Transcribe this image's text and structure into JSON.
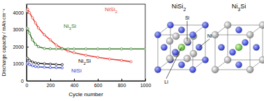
{
  "chart_data": {
    "type": "line",
    "ylabel": "Discharge capacity / mAh cm⁻³",
    "xlabel": "Cycle number",
    "x": [
      1,
      10,
      25,
      50,
      75,
      100,
      150,
      200,
      250,
      300,
      350,
      400,
      500,
      600,
      700,
      800,
      880,
      1000
    ],
    "series": [
      {
        "name": "NiSi2",
        "color": "#e8453c",
        "marker": "circle",
        "line_style": "solid",
        "values": [
          4100,
          4200,
          4000,
          3700,
          3400,
          3100,
          2700,
          2400,
          2100,
          1900,
          1750,
          1650,
          1500,
          1380,
          1280,
          1200,
          1120,
          null
        ]
      },
      {
        "name": "Ni3Si",
        "color": "#3a7d2c",
        "marker": "circle",
        "line_style": "solid",
        "values": [
          3100,
          3050,
          2800,
          2400,
          2150,
          2000,
          1900,
          1880,
          1870,
          1870,
          1870,
          1870,
          1870,
          1870,
          1870,
          1870,
          1870,
          1870
        ]
      },
      {
        "name": "Ni2Si",
        "color": "#111111",
        "marker": "circle",
        "line_style": "solid",
        "values": [
          1350,
          1300,
          1200,
          1100,
          1050,
          1020,
          1000,
          980,
          960,
          950,
          null,
          null,
          null,
          null,
          null,
          null,
          null,
          null
        ]
      },
      {
        "name": "NiSi",
        "color": "#3344cc",
        "marker": "circle",
        "line_style": "solid",
        "values": [
          1000,
          1050,
          950,
          880,
          840,
          820,
          800,
          780,
          770,
          760,
          null,
          null,
          null,
          null,
          null,
          null,
          null,
          null
        ]
      }
    ],
    "xlim": [
      0,
      1000
    ],
    "xticks": [
      0,
      200,
      400,
      600,
      800,
      1000
    ],
    "ylim": [
      0,
      4500
    ],
    "yticks": [
      0,
      1000,
      2000,
      3000,
      4000
    ],
    "grid": false
  },
  "diagram": {
    "structures": [
      {
        "title": "NiSi2"
      },
      {
        "title": "Ni3Si"
      }
    ],
    "annotations": [
      "Si",
      "Ni",
      "Li"
    ]
  }
}
